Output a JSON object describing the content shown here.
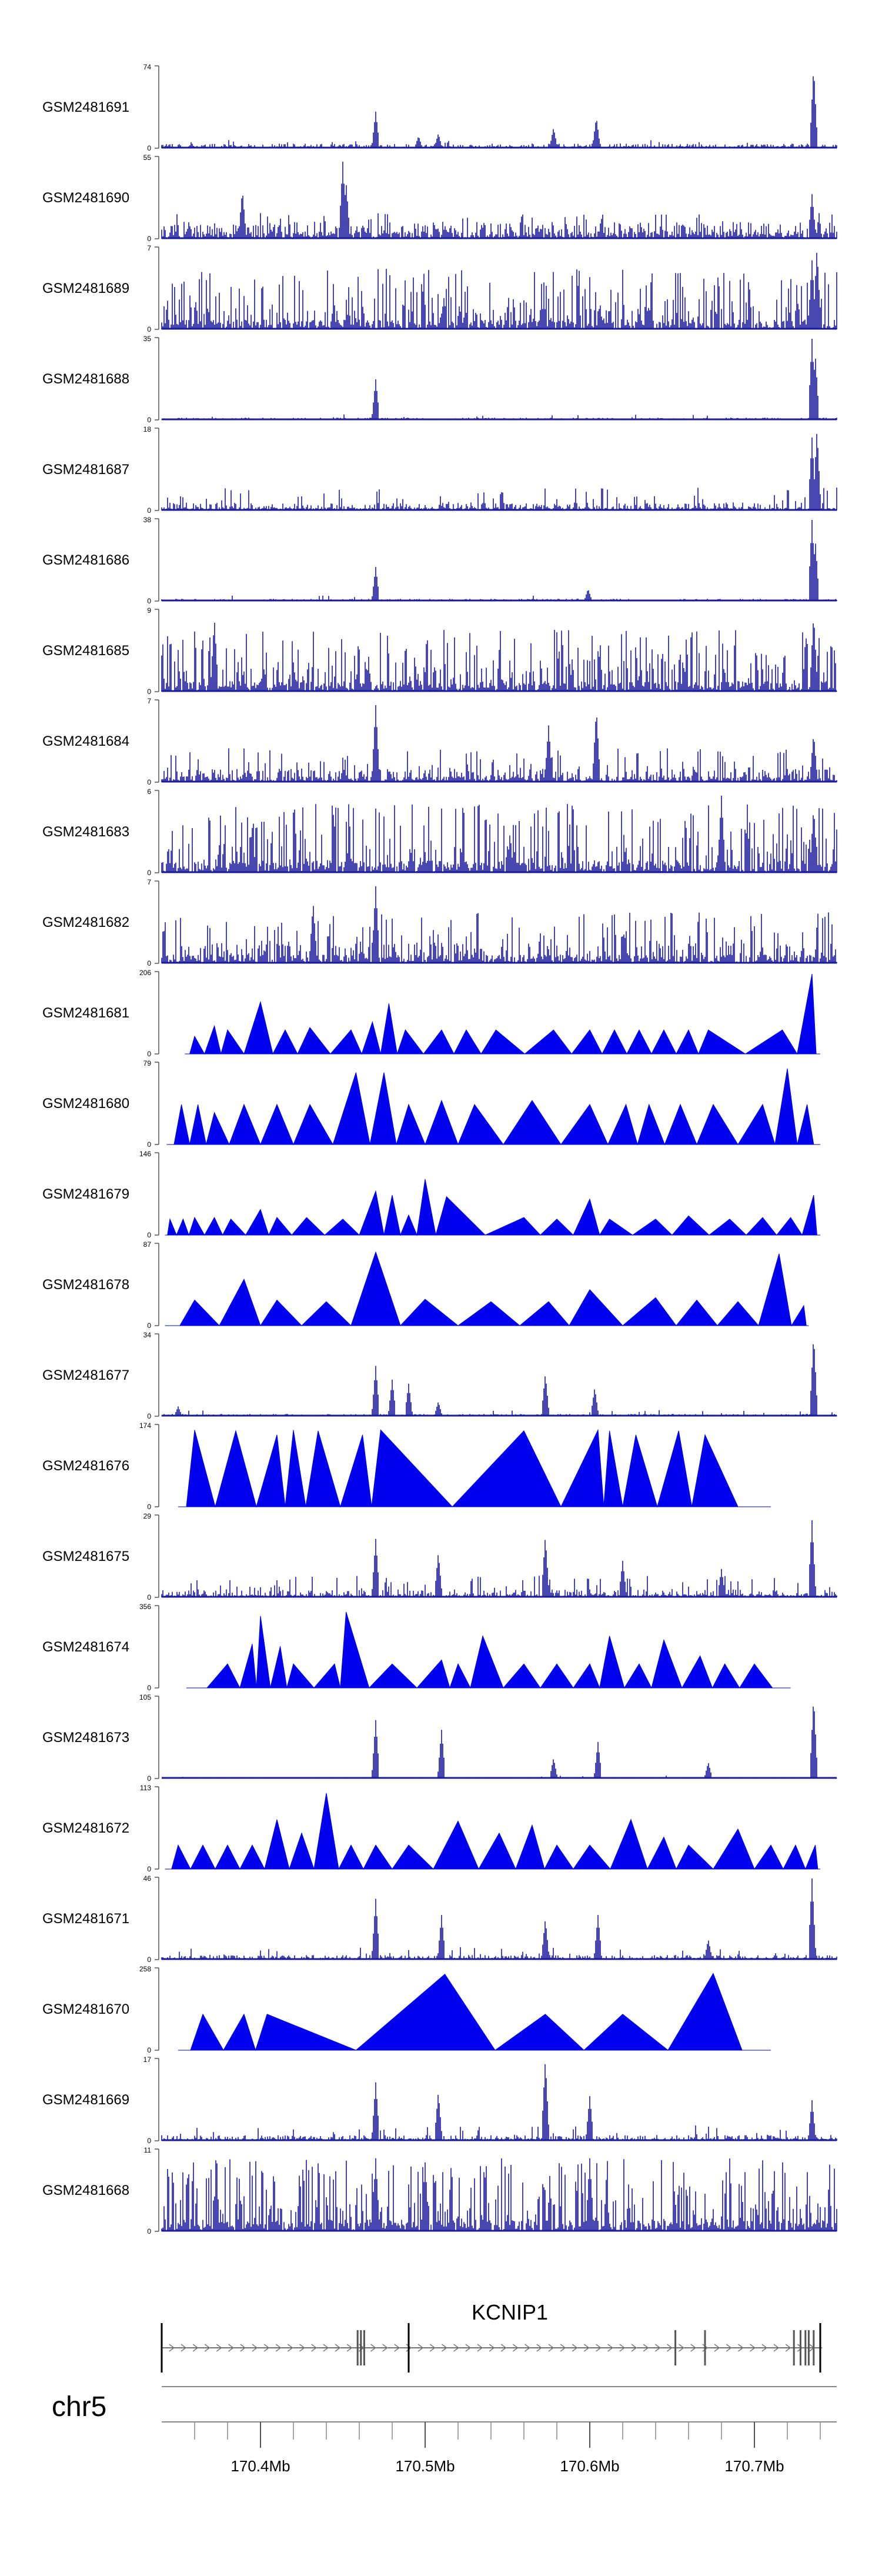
{
  "chart_data": {
    "type": "area",
    "chromosome": "chr5",
    "gene": {
      "name": "KCNIP1",
      "exons": [
        170.34,
        170.459,
        170.461,
        170.463,
        170.49,
        170.652,
        170.67,
        170.724,
        170.728,
        170.731,
        170.733,
        170.736,
        170.74
      ]
    },
    "xlim": [
      170.34,
      170.75
    ],
    "x_ticks": [
      170.4,
      170.5,
      170.6,
      170.7
    ],
    "x_tick_labels": [
      "170.4Mb",
      "170.5Mb",
      "170.6Mb",
      "170.7Mb"
    ],
    "colors": {
      "signal": "#1a1a9c",
      "triangle": "#0000ee",
      "axis": "#555555"
    },
    "tracks": [
      {
        "name": "GSM2481691",
        "ymax": 74,
        "style": "dense",
        "seed": 11,
        "base": 0.04,
        "noise": 0.06,
        "peaks": [
          [
            170.47,
            0.45
          ],
          [
            170.496,
            0.15
          ],
          [
            170.508,
            0.18
          ],
          [
            170.578,
            0.25
          ],
          [
            170.604,
            0.38
          ],
          [
            170.736,
            1.0
          ]
        ]
      },
      {
        "name": "GSM2481690",
        "ymax": 55,
        "style": "dense",
        "seed": 23,
        "base": 0.15,
        "noise": 0.18,
        "peaks": [
          [
            170.389,
            0.6
          ],
          [
            170.45,
            0.95
          ],
          [
            170.452,
            0.7
          ],
          [
            170.735,
            0.55
          ]
        ]
      },
      {
        "name": "GSM2481689",
        "ymax": 7,
        "style": "dense",
        "seed": 37,
        "base": 0.2,
        "noise": 0.55,
        "peaks": [
          [
            170.735,
            0.85
          ],
          [
            170.738,
            1.0
          ]
        ]
      },
      {
        "name": "GSM2481688",
        "ymax": 35,
        "style": "dense",
        "seed": 41,
        "base": 0.02,
        "noise": 0.05,
        "peaks": [
          [
            170.47,
            0.5
          ],
          [
            170.735,
            1.0
          ],
          [
            170.737,
            0.8
          ]
        ]
      },
      {
        "name": "GSM2481687",
        "ymax": 18,
        "style": "dense",
        "seed": 53,
        "base": 0.07,
        "noise": 0.22,
        "peaks": [
          [
            170.735,
            0.9
          ],
          [
            170.738,
            1.0
          ]
        ]
      },
      {
        "name": "GSM2481686",
        "ymax": 38,
        "style": "dense",
        "seed": 67,
        "base": 0.02,
        "noise": 0.05,
        "peaks": [
          [
            170.47,
            0.42
          ],
          [
            170.599,
            0.15
          ],
          [
            170.735,
            1.0
          ],
          [
            170.737,
            0.75
          ]
        ]
      },
      {
        "name": "GSM2481685",
        "ymax": 9,
        "style": "dense",
        "seed": 71,
        "base": 0.22,
        "noise": 0.55,
        "peaks": [
          [
            170.372,
            0.9
          ],
          [
            170.736,
            0.95
          ]
        ]
      },
      {
        "name": "GSM2481684",
        "ymax": 7,
        "style": "dense",
        "seed": 83,
        "base": 0.12,
        "noise": 0.3,
        "peaks": [
          [
            170.47,
            0.95
          ],
          [
            170.575,
            0.7
          ],
          [
            170.604,
            0.9
          ],
          [
            170.736,
            0.6
          ]
        ]
      },
      {
        "name": "GSM2481683",
        "ymax": 6,
        "style": "dense",
        "seed": 97,
        "base": 0.25,
        "noise": 0.6,
        "peaks": [
          [
            170.68,
            0.95
          ],
          [
            170.736,
            0.8
          ]
        ]
      },
      {
        "name": "GSM2481682",
        "ymax": 7,
        "style": "dense",
        "seed": 101,
        "base": 0.18,
        "noise": 0.45,
        "peaks": [
          [
            170.47,
            0.95
          ],
          [
            170.432,
            0.75
          ]
        ]
      },
      {
        "name": "GSM2481681",
        "ymax": 206,
        "style": "triangles",
        "seed": 113,
        "start": 170.354,
        "end": 170.74,
        "peaks": [
          [
            170.36,
            0.22
          ],
          [
            170.372,
            0.35
          ],
          [
            170.38,
            0.3
          ],
          [
            170.4,
            0.65
          ],
          [
            170.415,
            0.3
          ],
          [
            170.43,
            0.33
          ],
          [
            170.455,
            0.3
          ],
          [
            170.468,
            0.4
          ],
          [
            170.478,
            0.63
          ],
          [
            170.488,
            0.3
          ],
          [
            170.51,
            0.3
          ],
          [
            170.525,
            0.3
          ],
          [
            170.543,
            0.3
          ],
          [
            170.578,
            0.3
          ],
          [
            170.6,
            0.3
          ],
          [
            170.615,
            0.3
          ],
          [
            170.63,
            0.3
          ],
          [
            170.645,
            0.3
          ],
          [
            170.66,
            0.3
          ],
          [
            170.672,
            0.3
          ],
          [
            170.717,
            0.3
          ],
          [
            170.735,
            1.0
          ]
        ]
      },
      {
        "name": "GSM2481680",
        "ymax": 79,
        "style": "triangles",
        "seed": 127,
        "start": 170.343,
        "end": 170.74,
        "peaks": [
          [
            170.352,
            0.5
          ],
          [
            170.362,
            0.5
          ],
          [
            170.372,
            0.4
          ],
          [
            170.39,
            0.5
          ],
          [
            170.41,
            0.5
          ],
          [
            170.43,
            0.5
          ],
          [
            170.458,
            0.9
          ],
          [
            170.475,
            0.9
          ],
          [
            170.49,
            0.5
          ],
          [
            170.51,
            0.55
          ],
          [
            170.53,
            0.5
          ],
          [
            170.565,
            0.55
          ],
          [
            170.6,
            0.5
          ],
          [
            170.622,
            0.5
          ],
          [
            170.636,
            0.5
          ],
          [
            170.655,
            0.5
          ],
          [
            170.675,
            0.5
          ],
          [
            170.705,
            0.5
          ],
          [
            170.72,
            0.95
          ],
          [
            170.732,
            0.5
          ]
        ]
      },
      {
        "name": "GSM2481679",
        "ymax": 146,
        "style": "triangles",
        "seed": 131,
        "start": 170.342,
        "end": 170.74,
        "peaks": [
          [
            170.345,
            0.2
          ],
          [
            170.353,
            0.2
          ],
          [
            170.36,
            0.22
          ],
          [
            170.372,
            0.22
          ],
          [
            170.382,
            0.2
          ],
          [
            170.4,
            0.32
          ],
          [
            170.41,
            0.22
          ],
          [
            170.428,
            0.22
          ],
          [
            170.45,
            0.2
          ],
          [
            170.47,
            0.55
          ],
          [
            170.48,
            0.5
          ],
          [
            170.49,
            0.25
          ],
          [
            170.5,
            0.7
          ],
          [
            170.513,
            0.48
          ],
          [
            170.56,
            0.22
          ],
          [
            170.58,
            0.2
          ],
          [
            170.6,
            0.45
          ],
          [
            170.612,
            0.2
          ],
          [
            170.64,
            0.2
          ],
          [
            170.66,
            0.24
          ],
          [
            170.685,
            0.2
          ],
          [
            170.705,
            0.22
          ],
          [
            170.722,
            0.22
          ],
          [
            170.736,
            0.5
          ]
        ]
      },
      {
        "name": "GSM2481678",
        "ymax": 87,
        "style": "triangles",
        "seed": 139,
        "start": 170.342,
        "end": 170.733,
        "peaks": [
          [
            170.36,
            0.32
          ],
          [
            170.39,
            0.58
          ],
          [
            170.41,
            0.32
          ],
          [
            170.44,
            0.3
          ],
          [
            170.47,
            0.92
          ],
          [
            170.5,
            0.33
          ],
          [
            170.54,
            0.3
          ],
          [
            170.575,
            0.3
          ],
          [
            170.6,
            0.45
          ],
          [
            170.64,
            0.35
          ],
          [
            170.665,
            0.32
          ],
          [
            170.69,
            0.3
          ],
          [
            170.715,
            0.9
          ],
          [
            170.73,
            0.25
          ]
        ]
      },
      {
        "name": "GSM2481677",
        "ymax": 34,
        "style": "dense",
        "seed": 149,
        "base": 0.02,
        "noise": 0.06,
        "peaks": [
          [
            170.35,
            0.12
          ],
          [
            170.47,
            0.62
          ],
          [
            170.48,
            0.45
          ],
          [
            170.49,
            0.4
          ],
          [
            170.508,
            0.18
          ],
          [
            170.573,
            0.52
          ],
          [
            170.603,
            0.35
          ],
          [
            170.736,
            1.0
          ]
        ]
      },
      {
        "name": "GSM2481676",
        "ymax": 174,
        "style": "triangles",
        "seed": 151,
        "start": 170.35,
        "end": 170.71,
        "peaks": [
          [
            170.36,
            0.96
          ],
          [
            170.385,
            0.95
          ],
          [
            170.41,
            0.9
          ],
          [
            170.42,
            0.96
          ],
          [
            170.435,
            0.95
          ],
          [
            170.462,
            0.9
          ],
          [
            170.473,
            0.96
          ],
          [
            170.56,
            0.95
          ],
          [
            170.605,
            0.96
          ],
          [
            170.612,
            0.95
          ],
          [
            170.628,
            0.9
          ],
          [
            170.654,
            0.95
          ],
          [
            170.67,
            0.9
          ]
        ]
      },
      {
        "name": "GSM2481675",
        "ymax": 29,
        "style": "dense",
        "seed": 157,
        "base": 0.07,
        "noise": 0.2,
        "peaks": [
          [
            170.47,
            0.72
          ],
          [
            170.508,
            0.55
          ],
          [
            170.573,
            0.75
          ],
          [
            170.62,
            0.45
          ],
          [
            170.68,
            0.35
          ],
          [
            170.735,
            0.95
          ]
        ]
      },
      {
        "name": "GSM2481674",
        "ymax": 356,
        "style": "triangles",
        "seed": 163,
        "start": 170.355,
        "end": 170.722,
        "peaks": [
          [
            170.38,
            0.3
          ],
          [
            170.395,
            0.55
          ],
          [
            170.4,
            0.9
          ],
          [
            170.412,
            0.52
          ],
          [
            170.42,
            0.3
          ],
          [
            170.445,
            0.3
          ],
          [
            170.452,
            0.95
          ],
          [
            170.48,
            0.3
          ],
          [
            170.51,
            0.35
          ],
          [
            170.52,
            0.3
          ],
          [
            170.535,
            0.65
          ],
          [
            170.56,
            0.3
          ],
          [
            170.58,
            0.3
          ],
          [
            170.6,
            0.3
          ],
          [
            170.612,
            0.65
          ],
          [
            170.63,
            0.3
          ],
          [
            170.645,
            0.6
          ],
          [
            170.667,
            0.4
          ],
          [
            170.682,
            0.3
          ],
          [
            170.7,
            0.3
          ]
        ]
      },
      {
        "name": "GSM2481673",
        "ymax": 105,
        "style": "dense",
        "seed": 167,
        "base": 0.01,
        "noise": 0.04,
        "peaks": [
          [
            170.47,
            0.72
          ],
          [
            170.51,
            0.6
          ],
          [
            170.578,
            0.25
          ],
          [
            170.605,
            0.45
          ],
          [
            170.672,
            0.2
          ],
          [
            170.736,
            1.0
          ]
        ]
      },
      {
        "name": "GSM2481672",
        "ymax": 113,
        "style": "triangles",
        "seed": 173,
        "start": 170.342,
        "end": 170.74,
        "peaks": [
          [
            170.35,
            0.3
          ],
          [
            170.365,
            0.3
          ],
          [
            170.38,
            0.3
          ],
          [
            170.395,
            0.3
          ],
          [
            170.41,
            0.62
          ],
          [
            170.425,
            0.45
          ],
          [
            170.44,
            0.95
          ],
          [
            170.455,
            0.3
          ],
          [
            170.47,
            0.3
          ],
          [
            170.49,
            0.3
          ],
          [
            170.52,
            0.6
          ],
          [
            170.545,
            0.45
          ],
          [
            170.565,
            0.55
          ],
          [
            170.58,
            0.3
          ],
          [
            170.6,
            0.3
          ],
          [
            170.625,
            0.62
          ],
          [
            170.645,
            0.4
          ],
          [
            170.66,
            0.3
          ],
          [
            170.69,
            0.5
          ],
          [
            170.71,
            0.3
          ],
          [
            170.725,
            0.3
          ],
          [
            170.737,
            0.3
          ]
        ]
      },
      {
        "name": "GSM2481671",
        "ymax": 46,
        "style": "dense",
        "seed": 179,
        "base": 0.04,
        "noise": 0.12,
        "peaks": [
          [
            170.47,
            0.75
          ],
          [
            170.51,
            0.55
          ],
          [
            170.573,
            0.5
          ],
          [
            170.605,
            0.55
          ],
          [
            170.672,
            0.25
          ],
          [
            170.735,
            1.0
          ]
        ]
      },
      {
        "name": "GSM2481670",
        "ymax": 258,
        "style": "triangles",
        "seed": 181,
        "start": 170.35,
        "end": 170.71,
        "peaks": [
          [
            170.365,
            0.45
          ],
          [
            170.39,
            0.45
          ],
          [
            170.404,
            0.45
          ],
          [
            170.512,
            0.95
          ],
          [
            170.573,
            0.45
          ],
          [
            170.62,
            0.45
          ],
          [
            170.675,
            0.96
          ]
        ]
      },
      {
        "name": "GSM2481669",
        "ymax": 17,
        "style": "dense",
        "seed": 191,
        "base": 0.05,
        "noise": 0.15,
        "peaks": [
          [
            170.47,
            0.72
          ],
          [
            170.508,
            0.6
          ],
          [
            170.573,
            1.0
          ],
          [
            170.6,
            0.55
          ],
          [
            170.735,
            0.5
          ]
        ]
      },
      {
        "name": "GSM2481668",
        "ymax": 11,
        "style": "dense",
        "seed": 193,
        "base": 0.25,
        "noise": 0.65,
        "peaks": [
          [
            170.47,
            0.9
          ],
          [
            170.5,
            0.85
          ],
          [
            170.6,
            0.9
          ]
        ]
      }
    ]
  }
}
